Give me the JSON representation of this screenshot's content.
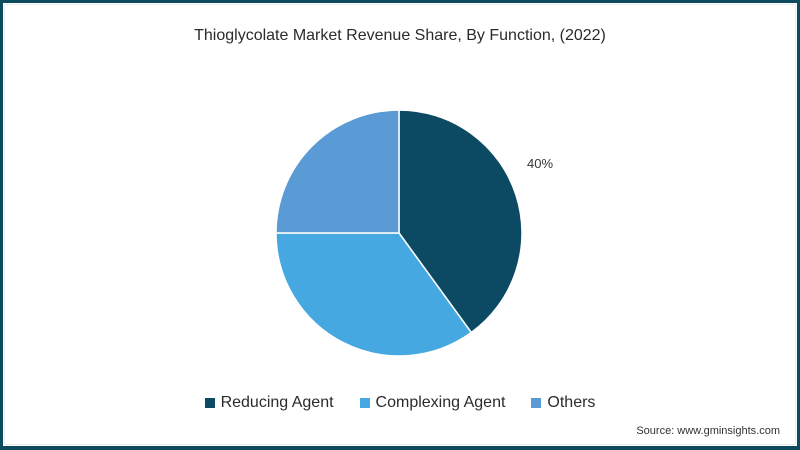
{
  "chart_data": {
    "type": "pie",
    "title": "Thioglycolate Market Revenue Share, By Function, (2022)",
    "categories": [
      "Reducing Agent",
      "Complexing Agent",
      "Others"
    ],
    "values": [
      40,
      35,
      25
    ],
    "colors": [
      "#0b4a62",
      "#45a8e0",
      "#5b9bd5"
    ],
    "data_labels": [
      {
        "category": "Reducing Agent",
        "label": "40%"
      }
    ],
    "legend_position": "bottom",
    "unit": "%"
  },
  "title": "Thioglycolate Market Revenue Share, By Function, (2022)",
  "slice_label": "40%",
  "legend": {
    "items": [
      {
        "label": "Reducing Agent",
        "color": "#0b4a62"
      },
      {
        "label": "Complexing Agent",
        "color": "#45a8e0"
      },
      {
        "label": "Others",
        "color": "#5b9bd5"
      }
    ]
  },
  "source": "Source: www.gminsights.com",
  "frame_color": "#0d4a5e"
}
